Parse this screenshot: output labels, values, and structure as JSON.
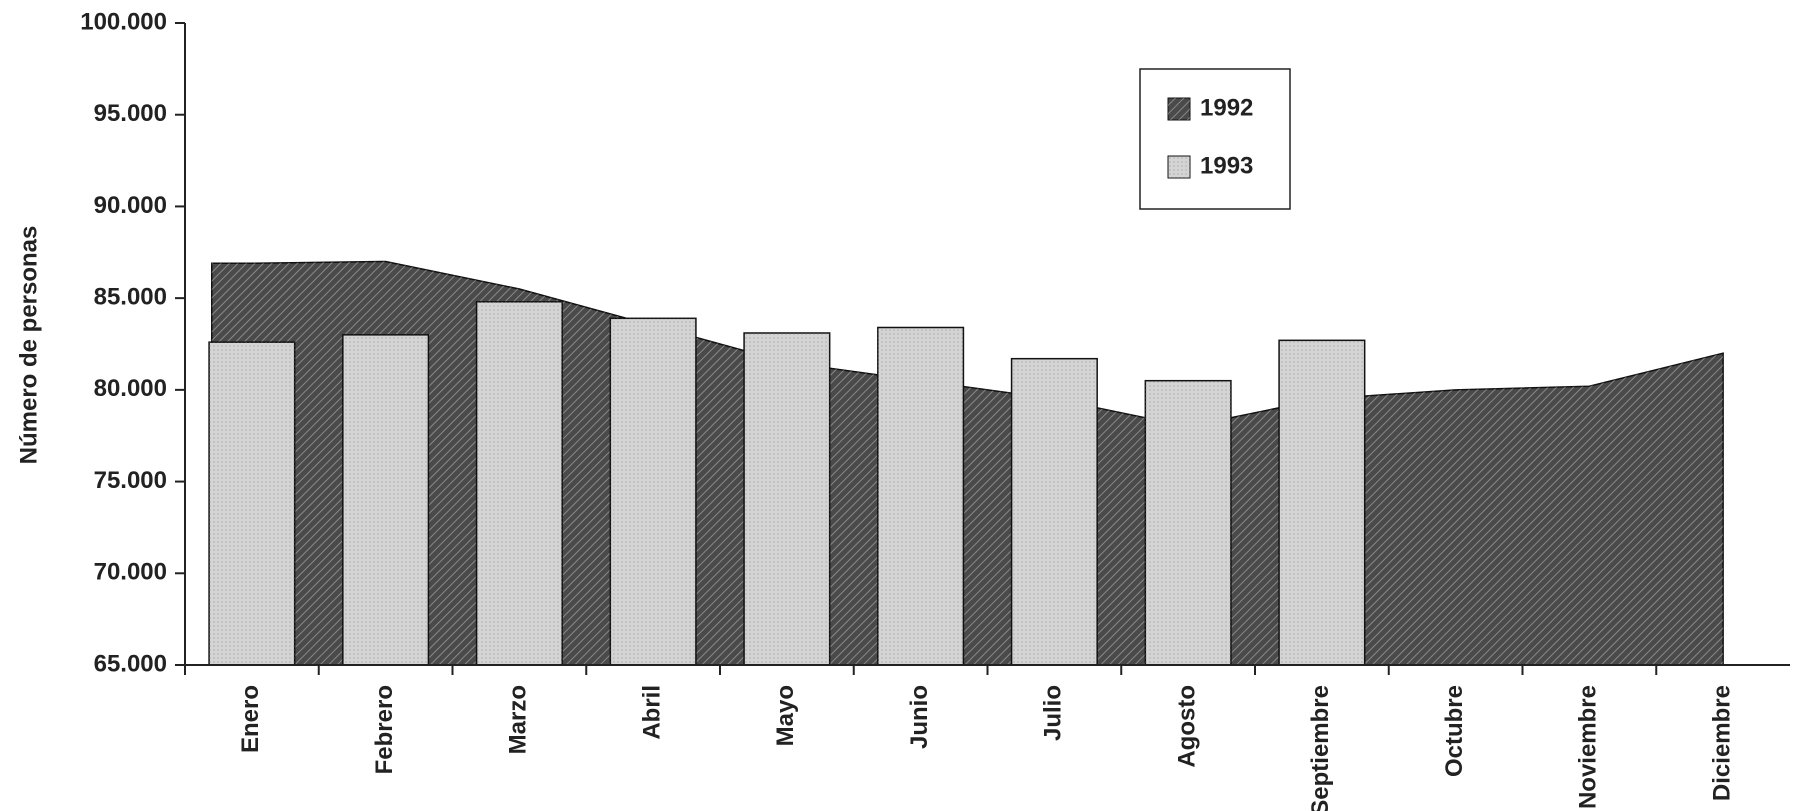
{
  "chart_data": {
    "type": "combo",
    "y_label": "Número de personas",
    "categories": [
      "Enero",
      "Febrero",
      "Marzo",
      "Abril",
      "Mayo",
      "Junio",
      "Julio",
      "Agosto",
      "Septiembre",
      "Octubre",
      "Noviembre",
      "Diciembre"
    ],
    "series": [
      {
        "name": "1992",
        "type": "area",
        "color": "#4a4a4a",
        "values": [
          86900,
          87000,
          85500,
          83500,
          81500,
          80500,
          79500,
          78000,
          79500,
          80000,
          80200,
          82000
        ]
      },
      {
        "name": "1993",
        "type": "bar",
        "color": "#d4d4d4",
        "values": [
          82600,
          83000,
          84800,
          83900,
          83100,
          83400,
          81700,
          80500,
          82700,
          null,
          null,
          null
        ]
      }
    ],
    "ylim": [
      65000,
      100000
    ],
    "yticks": [
      {
        "value": 65000,
        "label": "65.000"
      },
      {
        "value": 70000,
        "label": "70.000"
      },
      {
        "value": 75000,
        "label": "75.000"
      },
      {
        "value": 80000,
        "label": "80.000"
      },
      {
        "value": 85000,
        "label": "85.000"
      },
      {
        "value": 90000,
        "label": "90.000"
      },
      {
        "value": 95000,
        "label": "95.000"
      },
      {
        "value": 100000,
        "label": "100.000"
      }
    ],
    "legend": "top-right"
  }
}
